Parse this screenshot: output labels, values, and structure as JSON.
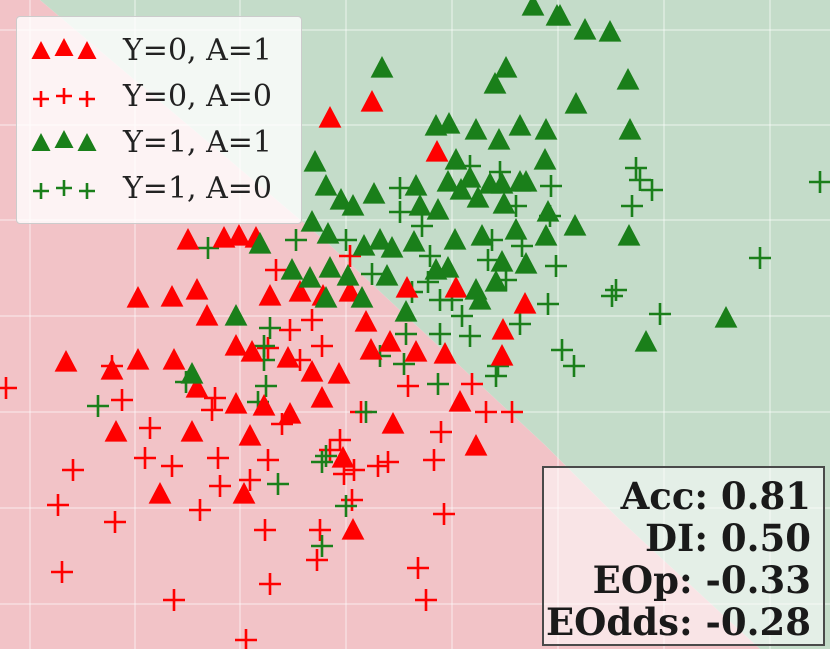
{
  "chart_data": {
    "type": "scatter",
    "title": "",
    "xlabel": "",
    "ylabel": "",
    "grid": true,
    "background_regions": [
      {
        "name": "predicted Y=0",
        "color": "#f2c3c7"
      },
      {
        "name": "predicted Y=1",
        "color": "#c4dcc9"
      }
    ],
    "legend": {
      "placement": "top-left",
      "entries": [
        {
          "label": "Y=0, A=1",
          "marker": "triangle",
          "color": "#ff0000"
        },
        {
          "label": "Y=0, A=0",
          "marker": "plus",
          "color": "#ff0000"
        },
        {
          "label": "Y=1, A=1",
          "marker": "triangle",
          "color": "#1a7f1a"
        },
        {
          "label": "Y=1, A=0",
          "marker": "plus",
          "color": "#1a7f1a"
        }
      ]
    },
    "metrics": {
      "placement": "bottom-right",
      "lines": [
        "Acc: 0.81",
        "DI: 0.50",
        "EOp: -0.33",
        "EOdds: -0.28"
      ]
    },
    "series": [
      {
        "name": "Y=0, A=1",
        "marker": "triangle",
        "color": "#ff0000",
        "points": [
          [
            188,
            240
          ],
          [
            224,
            238
          ],
          [
            239,
            236
          ],
          [
            256,
            238
          ],
          [
            138,
            298
          ],
          [
            172,
            297
          ],
          [
            197,
            290
          ],
          [
            207,
            316
          ],
          [
            270,
            296
          ],
          [
            300,
            292
          ],
          [
            323,
            296
          ],
          [
            330,
            118
          ],
          [
            372,
            102
          ],
          [
            350,
            292
          ],
          [
            407,
            288
          ],
          [
            456,
            288
          ],
          [
            525,
            304
          ],
          [
            503,
            330
          ],
          [
            502,
            356
          ],
          [
            66,
            362
          ],
          [
            112,
            370
          ],
          [
            138,
            360
          ],
          [
            174,
            360
          ],
          [
            197,
            388
          ],
          [
            236,
            346
          ],
          [
            252,
            352
          ],
          [
            236,
            404
          ],
          [
            264,
            406
          ],
          [
            288,
            358
          ],
          [
            312,
            372
          ],
          [
            339,
            374
          ],
          [
            366,
            322
          ],
          [
            371,
            350
          ],
          [
            390,
            342
          ],
          [
            416,
            352
          ],
          [
            445,
            354
          ],
          [
            322,
            398
          ],
          [
            116,
            432
          ],
          [
            192,
            432
          ],
          [
            250,
            436
          ],
          [
            290,
            414
          ],
          [
            343,
            458
          ],
          [
            393,
            424
          ],
          [
            460,
            402
          ],
          [
            476,
            446
          ],
          [
            160,
            494
          ],
          [
            244,
            494
          ],
          [
            353,
            530
          ],
          [
            437,
            152
          ]
        ]
      },
      {
        "name": "Y=0, A=0",
        "marker": "plus",
        "color": "#ff0000",
        "points": [
          [
            6,
            388
          ],
          [
            62,
            572
          ],
          [
            73,
            470
          ],
          [
            58,
            505
          ],
          [
            115,
            522
          ],
          [
            112,
            366
          ],
          [
            122,
            400
          ],
          [
            150,
            428
          ],
          [
            145,
            458
          ],
          [
            172,
            466
          ],
          [
            174,
            600
          ],
          [
            200,
            510
          ],
          [
            212,
            410
          ],
          [
            218,
            458
          ],
          [
            220,
            486
          ],
          [
            250,
            480
          ],
          [
            246,
            640
          ],
          [
            268,
            460
          ],
          [
            265,
            530
          ],
          [
            270,
            584
          ],
          [
            282,
            424
          ],
          [
            300,
            360
          ],
          [
            312,
            320
          ],
          [
            322,
            346
          ],
          [
            330,
            450
          ],
          [
            340,
            440
          ],
          [
            344,
            474
          ],
          [
            352,
            500
          ],
          [
            354,
            470
          ],
          [
            361,
            412
          ],
          [
            378,
            466
          ],
          [
            388,
            462
          ],
          [
            408,
            386
          ],
          [
            418,
            568
          ],
          [
            426,
            600
          ],
          [
            434,
            460
          ],
          [
            441,
            432
          ],
          [
            444,
            514
          ],
          [
            472,
            384
          ],
          [
            486,
            412
          ],
          [
            512,
            412
          ],
          [
            215,
            398
          ],
          [
            320,
            530
          ],
          [
            317,
            560
          ],
          [
            276,
            270
          ],
          [
            350,
            256
          ],
          [
            268,
            348
          ],
          [
            290,
            330
          ]
        ]
      },
      {
        "name": "Y=1, A=1",
        "marker": "triangle",
        "color": "#1a7f1a",
        "points": [
          [
            533,
            6
          ],
          [
            560,
            16
          ],
          [
            585,
            30
          ],
          [
            610,
            32
          ],
          [
            382,
            68
          ],
          [
            506,
            68
          ],
          [
            495,
            84
          ],
          [
            557,
            16
          ],
          [
            628,
            80
          ],
          [
            630,
            130
          ],
          [
            576,
            104
          ],
          [
            546,
            130
          ],
          [
            436,
            126
          ],
          [
            449,
            124
          ],
          [
            476,
            130
          ],
          [
            499,
            140
          ],
          [
            520,
            126
          ],
          [
            545,
            160
          ],
          [
            526,
            182
          ],
          [
            456,
            160
          ],
          [
            470,
            178
          ],
          [
            490,
            184
          ],
          [
            502,
            184
          ],
          [
            315,
            162
          ],
          [
            326,
            186
          ],
          [
            341,
            200
          ],
          [
            353,
            206
          ],
          [
            374,
            194
          ],
          [
            416,
            186
          ],
          [
            420,
            206
          ],
          [
            438,
            210
          ],
          [
            448,
            182
          ],
          [
            461,
            190
          ],
          [
            478,
            198
          ],
          [
            312,
            222
          ],
          [
            328,
            234
          ],
          [
            380,
            240
          ],
          [
            364,
            246
          ],
          [
            392,
            248
          ],
          [
            414,
            242
          ],
          [
            455,
            240
          ],
          [
            482,
            236
          ],
          [
            504,
            204
          ],
          [
            520,
            182
          ],
          [
            516,
            230
          ],
          [
            548,
            212
          ],
          [
            546,
            236
          ],
          [
            575,
            226
          ],
          [
            629,
            236
          ],
          [
            292,
            270
          ],
          [
            310,
            278
          ],
          [
            330,
            268
          ],
          [
            326,
            298
          ],
          [
            348,
            276
          ],
          [
            362,
            298
          ],
          [
            387,
            276
          ],
          [
            436,
            270
          ],
          [
            448,
            268
          ],
          [
            476,
            290
          ],
          [
            496,
            282
          ],
          [
            502,
            262
          ],
          [
            526,
            264
          ],
          [
            406,
            312
          ],
          [
            480,
            300
          ],
          [
            236,
            316
          ],
          [
            192,
            374
          ],
          [
            726,
            318
          ],
          [
            646,
            342
          ],
          [
            260,
            244
          ]
        ]
      },
      {
        "name": "Y=1, A=0",
        "marker": "plus",
        "color": "#1a7f1a",
        "points": [
          [
            820,
            182
          ],
          [
            760,
            258
          ],
          [
            660,
            314
          ],
          [
            616,
            290
          ],
          [
            612,
            296
          ],
          [
            640,
            180
          ],
          [
            632,
            206
          ],
          [
            652,
            190
          ],
          [
            636,
            168
          ],
          [
            551,
            186
          ],
          [
            550,
            216
          ],
          [
            500,
            172
          ],
          [
            470,
            166
          ],
          [
            516,
            206
          ],
          [
            492,
            240
          ],
          [
            488,
            260
          ],
          [
            506,
            280
          ],
          [
            522,
            246
          ],
          [
            556,
            266
          ],
          [
            548,
            304
          ],
          [
            520,
            324
          ],
          [
            574,
            366
          ],
          [
            562,
            350
          ],
          [
            498,
            366
          ],
          [
            496,
            376
          ],
          [
            470,
            336
          ],
          [
            462,
            316
          ],
          [
            452,
            300
          ],
          [
            440,
            334
          ],
          [
            438,
            384
          ],
          [
            440,
            300
          ],
          [
            428,
            282
          ],
          [
            412,
            292
          ],
          [
            400,
            188
          ],
          [
            400,
            212
          ],
          [
            422,
            226
          ],
          [
            430,
            256
          ],
          [
            406,
            334
          ],
          [
            404,
            364
          ],
          [
            380,
            356
          ],
          [
            372,
            274
          ],
          [
            346,
            240
          ],
          [
            296,
            240
          ],
          [
            270,
            328
          ],
          [
            264,
            360
          ],
          [
            266,
            386
          ],
          [
            258,
            402
          ],
          [
            264,
            346
          ],
          [
            208,
            248
          ],
          [
            186,
            382
          ],
          [
            98,
            406
          ],
          [
            278,
            484
          ],
          [
            322,
            462
          ],
          [
            322,
            546
          ],
          [
            326,
            456
          ],
          [
            366,
            412
          ],
          [
            346,
            506
          ]
        ]
      }
    ]
  }
}
